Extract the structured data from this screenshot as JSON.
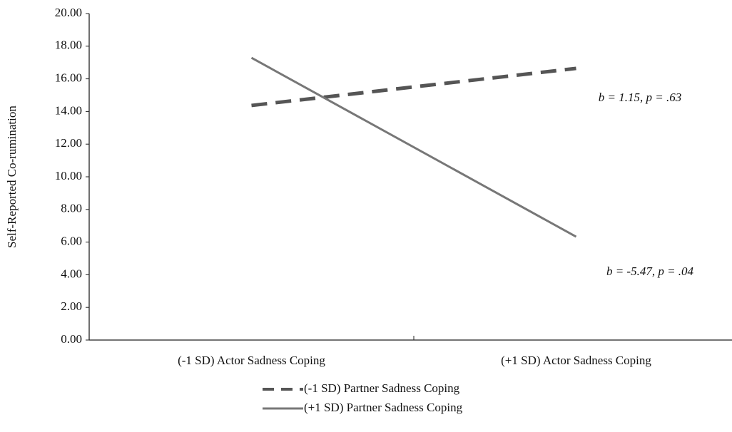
{
  "chart_data": {
    "type": "line",
    "y_label": "Self-Reported Co-rumination",
    "categories": [
      "(-1 SD) Actor Sadness Coping",
      "(+1 SD) Actor Sadness Coping"
    ],
    "series": [
      {
        "name": "(-1 SD) Partner Sadness Coping",
        "color": "#555555",
        "dash": true,
        "values": [
          14.37,
          16.64
        ]
      },
      {
        "name": "(+1 SD) Partner Sadness Coping",
        "color": "#777777",
        "dash": false,
        "values": [
          17.29,
          6.33
        ]
      }
    ],
    "annotations": [
      "b = 1.15, p = .63",
      "b = -5.47, p = .04"
    ],
    "ylim": [
      0,
      20
    ],
    "yticks": [
      {
        "value": 0,
        "label": "0.00"
      },
      {
        "value": 2,
        "label": "2.00"
      },
      {
        "value": 4,
        "label": "4.00"
      },
      {
        "value": 6,
        "label": "6.00"
      },
      {
        "value": 8,
        "label": "8.00"
      },
      {
        "value": 10,
        "label": "10.00"
      },
      {
        "value": 12,
        "label": "12.00"
      },
      {
        "value": 14,
        "label": "14.00"
      },
      {
        "value": 16,
        "label": "16.00"
      },
      {
        "value": 18,
        "label": "18.00"
      },
      {
        "value": 20,
        "label": "20.00"
      }
    ],
    "grid": false
  }
}
